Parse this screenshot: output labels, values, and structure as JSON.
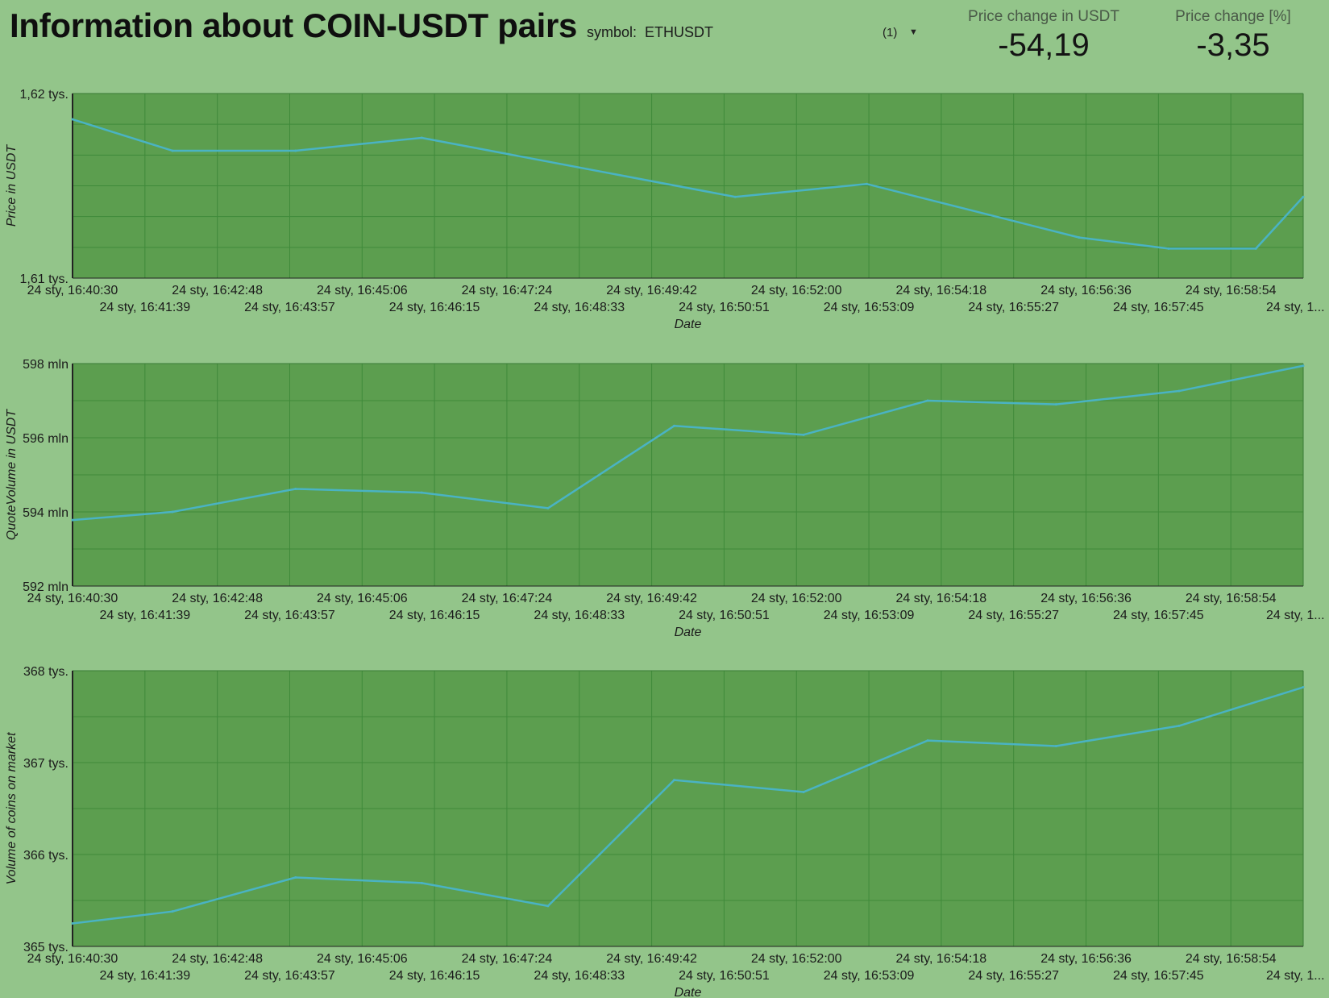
{
  "header": {
    "title": "Information about COIN-USDT pairs",
    "symbol_label": "symbol:",
    "symbol_value": "ETHUSDT",
    "selection_count": "(1)",
    "caret_icon": "caret-down-icon"
  },
  "metrics": [
    {
      "label": "Price change in USDT",
      "value": "-54,19"
    },
    {
      "label": "Price change [%]",
      "value": "-3,35"
    }
  ],
  "colors": {
    "page_bg": "#93c58a",
    "plot_bg": "#5c9e4f",
    "line": "#4ab3c3",
    "grid": "#3f8a3a"
  },
  "chart_data": [
    {
      "type": "line",
      "xlabel": "Date",
      "ylabel": "Price in USDT",
      "ytick_labels": [
        "1,61 tys.",
        "1,62 tys."
      ],
      "x_tick_labels": [
        "24 sty, 16:40:30",
        "24 sty, 16:41:39",
        "24 sty, 16:42:48",
        "24 sty, 16:43:57",
        "24 sty, 16:45:06",
        "24 sty, 16:46:15",
        "24 sty, 16:47:24",
        "24 sty, 16:48:33",
        "24 sty, 16:49:42",
        "24 sty, 16:50:51",
        "24 sty, 16:52:00",
        "24 sty, 16:53:09",
        "24 sty, 16:54:18",
        "24 sty, 16:55:27",
        "24 sty, 16:56:36",
        "24 sty, 16:57:45",
        "24 sty, 16:58:54",
        "24 sty, 1..."
      ],
      "x": [
        "24 sty, 16:40:30",
        "24 sty, 16:42:05",
        "24 sty, 16:44:02",
        "24 sty, 16:46:02",
        "24 sty, 16:51:00",
        "24 sty, 16:53:05",
        "24 sty, 16:56:27",
        "24 sty, 16:57:52",
        "24 sty, 16:59:15",
        "24 sty, 17:00:00"
      ],
      "values": [
        1618.6,
        1616.9,
        1616.9,
        1617.6,
        1614.4,
        1615.1,
        1612.2,
        1611.6,
        1611.6,
        1614.4
      ],
      "ylim": [
        1610,
        1620
      ],
      "grid": true,
      "xlim": [
        "24 sty, 16:40:30",
        "24 sty, 17:00:00"
      ]
    },
    {
      "type": "line",
      "xlabel": "Date",
      "ylabel": "QuoteVolume in USDT",
      "ytick_labels": [
        "592 mln",
        "594 mln",
        "596 mln",
        "598 mln"
      ],
      "x_tick_labels": [
        "24 sty, 16:40:30",
        "24 sty, 16:41:39",
        "24 sty, 16:42:48",
        "24 sty, 16:43:57",
        "24 sty, 16:45:06",
        "24 sty, 16:46:15",
        "24 sty, 16:47:24",
        "24 sty, 16:48:33",
        "24 sty, 16:49:42",
        "24 sty, 16:50:51",
        "24 sty, 16:52:00",
        "24 sty, 16:53:09",
        "24 sty, 16:54:18",
        "24 sty, 16:55:27",
        "24 sty, 16:56:36",
        "24 sty, 16:57:45",
        "24 sty, 16:58:54",
        "24 sty, 1..."
      ],
      "x": [
        "24 sty, 16:40:30",
        "24 sty, 16:42:05",
        "24 sty, 16:44:02",
        "24 sty, 16:46:02",
        "24 sty, 16:48:02",
        "24 sty, 16:50:02",
        "24 sty, 16:52:05",
        "24 sty, 16:54:03",
        "24 sty, 16:56:05",
        "24 sty, 16:58:02",
        "24 sty, 17:00:00"
      ],
      "values": [
        593.78,
        594.0,
        594.62,
        594.52,
        594.1,
        596.32,
        596.08,
        597.0,
        596.9,
        597.26,
        597.94
      ],
      "ylim": [
        592,
        598
      ],
      "grid": true,
      "xlim": [
        "24 sty, 16:40:30",
        "24 sty, 17:00:00"
      ]
    },
    {
      "type": "line",
      "xlabel": "Date",
      "ylabel": "Volume of coins on market",
      "ytick_labels": [
        "365 tys.",
        "366 tys.",
        "367 tys.",
        "368 tys."
      ],
      "x_tick_labels": [
        "24 sty, 16:40:30",
        "24 sty, 16:41:39",
        "24 sty, 16:42:48",
        "24 sty, 16:43:57",
        "24 sty, 16:45:06",
        "24 sty, 16:46:15",
        "24 sty, 16:47:24",
        "24 sty, 16:48:33",
        "24 sty, 16:49:42",
        "24 sty, 16:50:51",
        "24 sty, 16:52:00",
        "24 sty, 16:53:09",
        "24 sty, 16:54:18",
        "24 sty, 16:55:27",
        "24 sty, 16:56:36",
        "24 sty, 16:57:45",
        "24 sty, 16:58:54",
        "24 sty, 1..."
      ],
      "x": [
        "24 sty, 16:40:30",
        "24 sty, 16:42:05",
        "24 sty, 16:44:02",
        "24 sty, 16:46:02",
        "24 sty, 16:48:02",
        "24 sty, 16:50:02",
        "24 sty, 16:52:05",
        "24 sty, 16:54:03",
        "24 sty, 16:56:05",
        "24 sty, 16:58:02",
        "24 sty, 17:00:00"
      ],
      "values": [
        365.25,
        365.38,
        365.75,
        365.69,
        365.44,
        366.81,
        366.68,
        367.24,
        367.18,
        367.4,
        367.82
      ],
      "ylim": [
        365,
        368
      ],
      "grid": true,
      "xlim": [
        "24 sty, 16:40:30",
        "24 sty, 17:00:00"
      ]
    }
  ]
}
